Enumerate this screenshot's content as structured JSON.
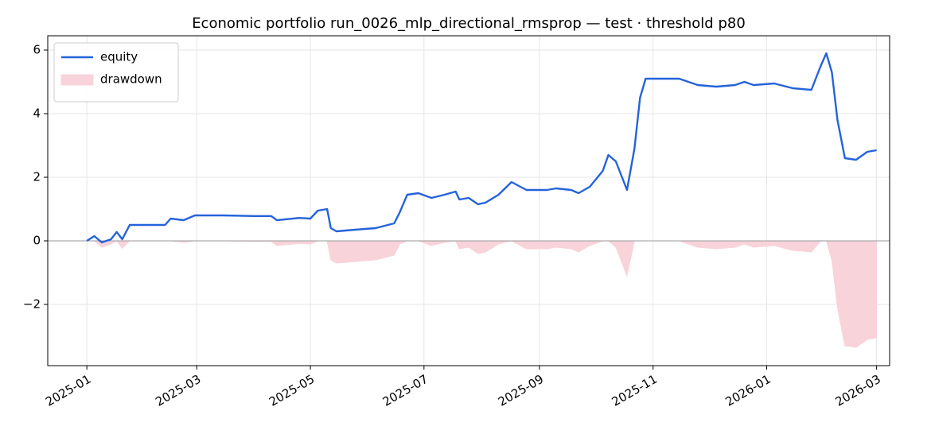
{
  "chart_data": {
    "type": "line",
    "title": "Economic portfolio run_0026_mlp_directional_rmsprop — test · threshold p80",
    "x": [
      "2025-01-01",
      "2025-01-05",
      "2025-01-09",
      "2025-01-14",
      "2025-01-17",
      "2025-01-20",
      "2025-01-24",
      "2025-02-01",
      "2025-02-12",
      "2025-02-15",
      "2025-02-22",
      "2025-02-28",
      "2025-03-15",
      "2025-04-01",
      "2025-04-10",
      "2025-04-13",
      "2025-04-25",
      "2025-05-01",
      "2025-05-05",
      "2025-05-10",
      "2025-05-12",
      "2025-05-15",
      "2025-05-25",
      "2025-06-05",
      "2025-06-15",
      "2025-06-18",
      "2025-06-22",
      "2025-06-28",
      "2025-07-05",
      "2025-07-12",
      "2025-07-18",
      "2025-07-20",
      "2025-07-25",
      "2025-07-30",
      "2025-08-03",
      "2025-08-10",
      "2025-08-17",
      "2025-08-25",
      "2025-09-05",
      "2025-09-10",
      "2025-09-18",
      "2025-09-22",
      "2025-09-28",
      "2025-10-05",
      "2025-10-08",
      "2025-10-12",
      "2025-10-18",
      "2025-10-22",
      "2025-10-25",
      "2025-10-28",
      "2025-11-05",
      "2025-11-15",
      "2025-11-25",
      "2025-12-05",
      "2025-12-15",
      "2025-12-20",
      "2025-12-25",
      "2026-01-05",
      "2026-01-15",
      "2026-01-25",
      "2026-01-30",
      "2026-02-02",
      "2026-02-05",
      "2026-02-08",
      "2026-02-12",
      "2026-02-18",
      "2026-02-24",
      "2026-03-01"
    ],
    "series": [
      {
        "name": "equity",
        "type": "line",
        "color": "#2563d9",
        "values": [
          0,
          0.15,
          -0.05,
          0.05,
          0.28,
          0.05,
          0.5,
          0.5,
          0.5,
          0.7,
          0.65,
          0.8,
          0.8,
          0.78,
          0.78,
          0.65,
          0.72,
          0.7,
          0.95,
          1.0,
          0.4,
          0.3,
          0.35,
          0.4,
          0.55,
          0.9,
          1.45,
          1.5,
          1.35,
          1.45,
          1.55,
          1.3,
          1.35,
          1.15,
          1.2,
          1.45,
          1.85,
          1.6,
          1.6,
          1.65,
          1.6,
          1.5,
          1.7,
          2.2,
          2.7,
          2.5,
          1.6,
          2.9,
          4.5,
          5.1,
          5.1,
          5.1,
          4.9,
          4.85,
          4.9,
          5.0,
          4.9,
          4.95,
          4.8,
          4.75,
          5.5,
          5.9,
          5.3,
          3.8,
          2.6,
          2.55,
          2.8,
          2.85
        ]
      },
      {
        "name": "drawdown",
        "type": "area",
        "color": "#f8d3da",
        "values": [
          0,
          0,
          -0.2,
          -0.1,
          0,
          -0.23,
          0,
          0,
          0,
          0,
          -0.05,
          0,
          0,
          -0.02,
          -0.02,
          -0.15,
          -0.08,
          -0.1,
          0,
          0,
          -0.6,
          -0.7,
          -0.65,
          -0.6,
          -0.45,
          -0.1,
          0,
          0,
          -0.15,
          -0.05,
          0,
          -0.25,
          -0.2,
          -0.4,
          -0.35,
          -0.1,
          0,
          -0.25,
          -0.25,
          -0.2,
          -0.25,
          -0.35,
          -0.15,
          0,
          0,
          -0.2,
          -1.1,
          0,
          0,
          0,
          0,
          0,
          -0.2,
          -0.25,
          -0.2,
          -0.1,
          -0.2,
          -0.15,
          -0.3,
          -0.35,
          0,
          0,
          -0.6,
          -2.1,
          -3.3,
          -3.35,
          -3.1,
          -3.05
        ]
      }
    ],
    "xlim": [
      "2024-12-11",
      "2026-03-08"
    ],
    "xticks": [
      {
        "value": "2025-01-01",
        "label": "2025-01"
      },
      {
        "value": "2025-03-01",
        "label": "2025-03"
      },
      {
        "value": "2025-05-01",
        "label": "2025-05"
      },
      {
        "value": "2025-07-01",
        "label": "2025-07"
      },
      {
        "value": "2025-09-01",
        "label": "2025-09"
      },
      {
        "value": "2025-11-01",
        "label": "2025-11"
      },
      {
        "value": "2026-01-01",
        "label": "2026-01"
      },
      {
        "value": "2026-03-01",
        "label": "2026-03"
      }
    ],
    "ylim": [
      -3.925,
      6.45
    ],
    "yticks": [
      {
        "value": -2,
        "label": "−2"
      },
      0,
      2,
      4,
      6
    ],
    "grid": true,
    "legend": "upper left"
  }
}
